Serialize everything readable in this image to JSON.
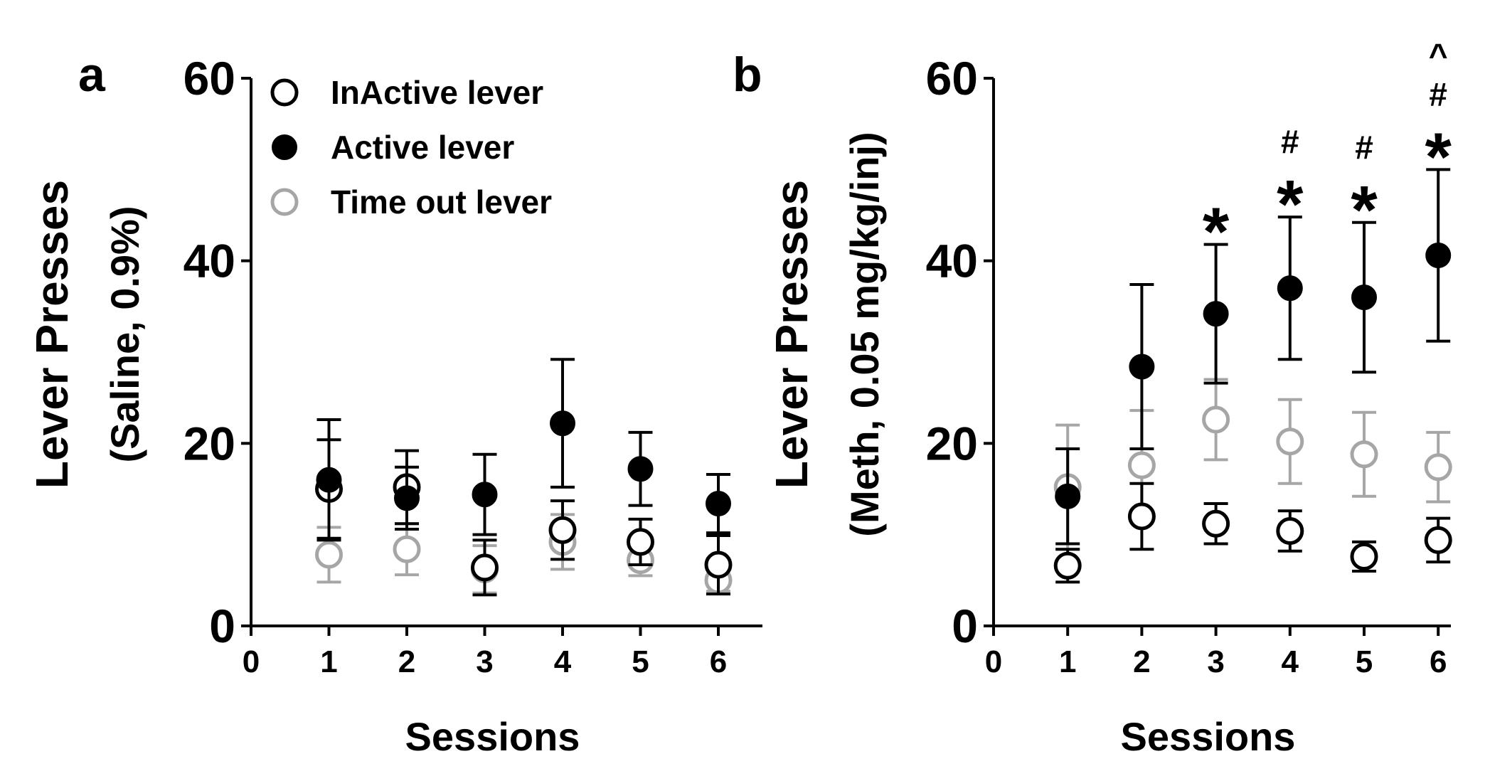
{
  "colors": {
    "inactive": "#000000",
    "active": "#000000",
    "timeout": "#a6a6a6",
    "axis": "#000000"
  },
  "legend": {
    "placement": "top-left of panel a",
    "entries": [
      {
        "key": "inactive",
        "label": "InActive lever",
        "marker": "open-circle"
      },
      {
        "key": "active",
        "label": "Active lever",
        "marker": "filled-circle"
      },
      {
        "key": "timeout",
        "label": "Time out lever",
        "marker": "open-circle-gray"
      }
    ]
  },
  "chart_data": [
    {
      "type": "scatter",
      "panel_label": "a",
      "xlabel": "Sessions",
      "ylabel_line1": "Lever Presses",
      "ylabel_line2": "(Saline, 0.9%)",
      "xlim": [
        0,
        6.6
      ],
      "ylim": [
        0,
        60
      ],
      "x_ticks": [
        "0",
        "1",
        "2",
        "3",
        "4",
        "5",
        "6"
      ],
      "y_ticks": [
        "0",
        "20",
        "40",
        "60"
      ],
      "x": [
        1,
        2,
        3,
        4,
        5,
        6
      ],
      "series": [
        {
          "key": "timeout",
          "name": "Time out lever",
          "values": [
            7.8,
            8.4,
            6.2,
            9.2,
            7.2,
            5.0
          ],
          "err": [
            3.0,
            2.8,
            2.6,
            3.0,
            1.7,
            1.2
          ]
        },
        {
          "key": "inactive",
          "name": "InActive lever",
          "values": [
            15.0,
            15.2,
            6.4,
            10.5,
            9.2,
            6.7
          ],
          "err": [
            5.4,
            4.0,
            3.0,
            3.2,
            2.5,
            3.2
          ]
        },
        {
          "key": "active",
          "name": "Active lever",
          "values": [
            16.0,
            14.0,
            14.4,
            22.2,
            17.2,
            13.4
          ],
          "err": [
            6.6,
            3.4,
            4.4,
            7.0,
            4.0,
            3.2
          ]
        }
      ],
      "annotations": [],
      "grid": false
    },
    {
      "type": "scatter",
      "panel_label": "b",
      "xlabel": "Sessions",
      "ylabel_line1": "Lever Presses",
      "ylabel_line2": "(Meth, 0.05 mg/kg/inj)",
      "xlim": [
        0,
        6.6
      ],
      "ylim": [
        0,
        60
      ],
      "x_ticks": [
        "0",
        "1",
        "2",
        "3",
        "4",
        "5",
        "6"
      ],
      "y_ticks": [
        "0",
        "20",
        "40",
        "60"
      ],
      "x": [
        1,
        2,
        3,
        4,
        5,
        6
      ],
      "series": [
        {
          "key": "timeout",
          "name": "Time out lever",
          "values": [
            15.2,
            17.6,
            22.6,
            20.2,
            18.8,
            17.4
          ],
          "err": [
            6.8,
            6.0,
            4.4,
            4.6,
            4.6,
            3.8
          ]
        },
        {
          "key": "inactive",
          "name": "InActive lever",
          "values": [
            6.6,
            12.0,
            11.2,
            10.4,
            7.6,
            9.4
          ],
          "err": [
            1.8,
            3.6,
            2.2,
            2.2,
            1.6,
            2.4
          ]
        },
        {
          "key": "active",
          "name": "Active lever",
          "values": [
            14.2,
            28.4,
            34.2,
            37.0,
            36.0,
            40.6
          ],
          "err": [
            5.2,
            9.0,
            7.6,
            7.8,
            8.2,
            9.4
          ]
        }
      ],
      "annotations": [
        {
          "x": 3,
          "lines": [
            "*"
          ]
        },
        {
          "x": 4,
          "lines": [
            "#",
            "*"
          ]
        },
        {
          "x": 5,
          "lines": [
            "#",
            "*"
          ]
        },
        {
          "x": 6,
          "lines": [
            "^",
            "#",
            "*"
          ]
        }
      ],
      "grid": false
    }
  ]
}
